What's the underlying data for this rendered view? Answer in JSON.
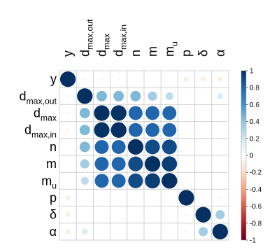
{
  "chart_data": {
    "type": "heatmap",
    "subtype": "correlation-circle-matrix",
    "variables": [
      {
        "base": "y",
        "sub": ""
      },
      {
        "base": "d",
        "sub": "max,out"
      },
      {
        "base": "d",
        "sub": "max"
      },
      {
        "base": "d",
        "sub": "max,in"
      },
      {
        "base": "n",
        "sub": ""
      },
      {
        "base": "m",
        "sub": ""
      },
      {
        "base": "m",
        "sub": "u"
      },
      {
        "base": "p",
        "sub": ""
      },
      {
        "base": "δ",
        "sub": ""
      },
      {
        "base": "α",
        "sub": ""
      }
    ],
    "matrix": [
      [
        1.0,
        0.05,
        -0.05,
        -0.05,
        0.0,
        0.0,
        0.0,
        -0.1,
        -0.1,
        -0.1
      ],
      [
        0.05,
        1.0,
        0.45,
        0.45,
        0.45,
        0.35,
        0.25,
        0.0,
        0.0,
        0.15
      ],
      [
        -0.05,
        0.45,
        1.0,
        0.99,
        0.8,
        0.8,
        0.8,
        0.0,
        0.0,
        0.0
      ],
      [
        -0.05,
        0.45,
        0.99,
        1.0,
        0.8,
        0.8,
        0.8,
        0.0,
        0.0,
        0.0
      ],
      [
        0.0,
        0.45,
        0.8,
        0.8,
        1.0,
        0.9,
        0.9,
        0.0,
        0.0,
        0.0
      ],
      [
        0.0,
        0.35,
        0.8,
        0.8,
        0.9,
        1.0,
        0.95,
        0.0,
        0.0,
        0.0
      ],
      [
        0.0,
        0.25,
        0.8,
        0.8,
        0.9,
        0.95,
        1.0,
        0.0,
        0.0,
        0.0
      ],
      [
        -0.1,
        0.0,
        0.0,
        0.0,
        0.0,
        0.0,
        0.0,
        1.0,
        0.05,
        0.05
      ],
      [
        -0.1,
        0.0,
        0.0,
        0.0,
        0.0,
        0.0,
        0.0,
        0.05,
        1.0,
        0.35
      ],
      [
        -0.1,
        0.15,
        0.0,
        0.0,
        0.0,
        0.0,
        0.0,
        0.05,
        0.35,
        1.0
      ]
    ],
    "colorbar": {
      "range": [
        -1,
        1
      ],
      "ticks": [
        "1",
        "0.8",
        "0.6",
        "0.4",
        "0.2",
        "0",
        "-0.2",
        "-0.4",
        "-0.6",
        "-0.8",
        "-1"
      ],
      "colors": [
        "#053061",
        "#2166AC",
        "#4393C3",
        "#92C5DE",
        "#D1E5F0",
        "#FFFFFF",
        "#FDDBC7",
        "#F4A582",
        "#D6604D",
        "#B2182B",
        "#67001F"
      ]
    },
    "grid": true,
    "legend": "right"
  }
}
